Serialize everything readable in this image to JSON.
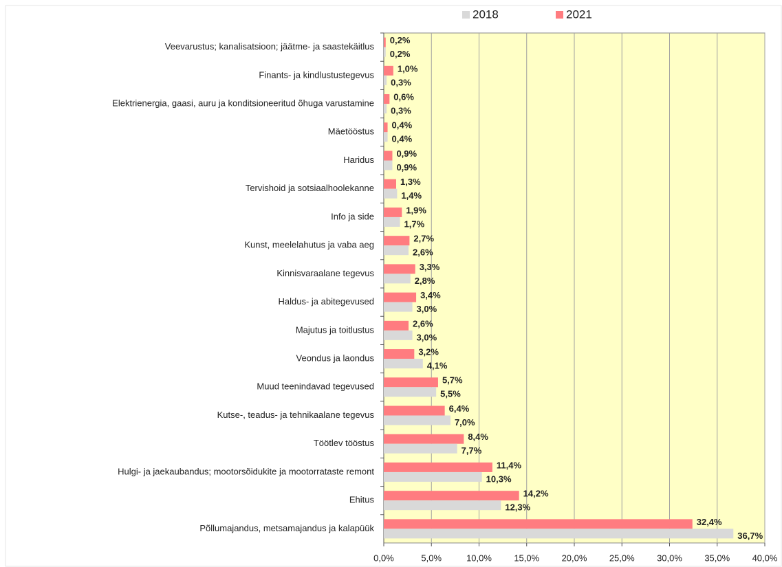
{
  "chart_data": {
    "type": "hbar",
    "categories": [
      "Veevarustus; kanalisatsioon; jäätme- ja saastekäitlus",
      "Finants- ja kindlustustegevus",
      "Elektrienergia, gaasi, auru ja konditsioneeritud õhuga varustamine",
      "Mäetööstus",
      "Haridus",
      "Tervishoid ja sotsiaalhoolekanne",
      "Info ja side",
      "Kunst, meelelahutus ja vaba aeg",
      "Kinnisvaraalane tegevus",
      "Haldus- ja abitegevused",
      "Majutus ja toitlustus",
      "Veondus ja laondus",
      "Muud teenindavad tegevused",
      "Kutse-, teadus- ja tehnikaalane tegevus",
      "Töötlev tööstus",
      "Hulgi- ja jaekaubandus; mootorsõidukite ja mootorrataste remont",
      "Ehitus",
      "Põllumajandus, metsamajandus ja kalapüük"
    ],
    "series": [
      {
        "name": "2018",
        "color": "#d9d9d9",
        "label_color": "#5a6a94",
        "values": [
          0.2,
          0.3,
          0.3,
          0.4,
          0.9,
          1.4,
          1.7,
          2.6,
          2.8,
          3.0,
          3.0,
          4.1,
          5.5,
          7.0,
          7.7,
          10.3,
          12.3,
          36.7
        ],
        "value_labels": [
          "0,2%",
          "0,3%",
          "0,3%",
          "0,4%",
          "0,9%",
          "1,4%",
          "1,7%",
          "2,6%",
          "2,8%",
          "3,0%",
          "3,0%",
          "4,1%",
          "5,5%",
          "7,0%",
          "7,7%",
          "10,3%",
          "12,3%",
          "36,7%"
        ]
      },
      {
        "name": "2021",
        "color": "#ff7c80",
        "label_color": "#ff0000",
        "values": [
          0.2,
          1.0,
          0.6,
          0.4,
          0.9,
          1.3,
          1.9,
          2.7,
          3.3,
          3.4,
          2.6,
          3.2,
          5.7,
          6.4,
          8.4,
          11.4,
          14.2,
          32.4
        ],
        "value_labels": [
          "0,2%",
          "1,0%",
          "0,6%",
          "0,4%",
          "0,9%",
          "1,3%",
          "1,9%",
          "2,7%",
          "3,3%",
          "3,4%",
          "2,6%",
          "3,2%",
          "5,7%",
          "6,4%",
          "8,4%",
          "11,4%",
          "14,2%",
          "32,4%"
        ]
      }
    ],
    "xlim": [
      0,
      40
    ],
    "xticks": [
      {
        "value": 0,
        "label": "0,0%"
      },
      {
        "value": 5,
        "label": "5,0%"
      },
      {
        "value": 10,
        "label": "10,0%"
      },
      {
        "value": 15,
        "label": "15,0%"
      },
      {
        "value": 20,
        "label": "20,0%"
      },
      {
        "value": 25,
        "label": "25,0%"
      },
      {
        "value": 30,
        "label": "30,0%"
      },
      {
        "value": 35,
        "label": "35,0%"
      },
      {
        "value": 40,
        "label": "40,0%"
      }
    ],
    "grid": true,
    "legend": "top",
    "plot_background": "#ffffc6"
  }
}
